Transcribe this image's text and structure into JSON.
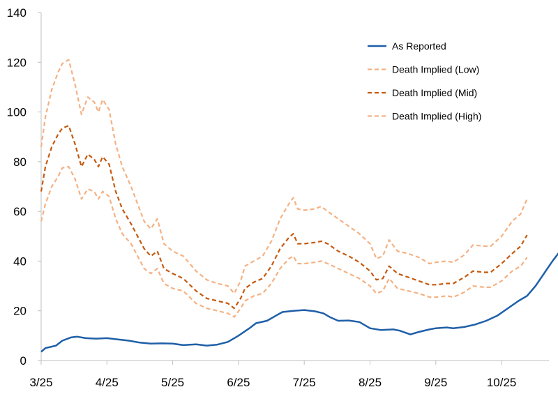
{
  "chart_data": {
    "type": "line",
    "title": "",
    "xlabel": "",
    "ylabel": "",
    "x_ticks": [
      "3/25",
      "4/25",
      "5/25",
      "6/25",
      "7/25",
      "8/25",
      "9/25",
      "10/25"
    ],
    "ylim": [
      0,
      140
    ],
    "y_ticks": [
      0,
      20,
      40,
      60,
      80,
      100,
      120,
      140
    ],
    "grid": false,
    "legend_position": "top-right",
    "series": [
      {
        "name": "As Reported",
        "color": "#1f5fa8",
        "style": "solid",
        "points": [
          [
            "3/25",
            3.5
          ],
          [
            "3/27",
            5
          ],
          [
            "4/1",
            6
          ],
          [
            "4/4",
            8
          ],
          [
            "4/8",
            9.3
          ],
          [
            "4/11",
            9.6
          ],
          [
            "4/15",
            9
          ],
          [
            "4/20",
            8.8
          ],
          [
            "4/25",
            9
          ],
          [
            "4/30",
            8.5
          ],
          [
            "5/5",
            8
          ],
          [
            "5/10",
            7.2
          ],
          [
            "5/15",
            6.8
          ],
          [
            "5/20",
            6.9
          ],
          [
            "5/25",
            6.8
          ],
          [
            "5/30",
            6.2
          ],
          [
            "6/5",
            6.5
          ],
          [
            "6/10",
            6
          ],
          [
            "6/15",
            6.4
          ],
          [
            "6/20",
            7.5
          ],
          [
            "6/25",
            10
          ],
          [
            "6/30",
            13
          ],
          [
            "7/3",
            15
          ],
          [
            "7/8",
            16
          ],
          [
            "7/12",
            18
          ],
          [
            "7/15",
            19.5
          ],
          [
            "7/20",
            20
          ],
          [
            "7/25",
            20.3
          ],
          [
            "7/30",
            19.8
          ],
          [
            "8/3",
            19
          ],
          [
            "8/6",
            17.5
          ],
          [
            "8/10",
            16
          ],
          [
            "8/15",
            16.1
          ],
          [
            "8/20",
            15.5
          ],
          [
            "8/25",
            13
          ],
          [
            "8/30",
            12.3
          ],
          [
            "9/5",
            12.5
          ],
          [
            "9/8",
            12
          ],
          [
            "9/13",
            10.5
          ],
          [
            "9/17",
            11.5
          ],
          [
            "9/22",
            12.5
          ],
          [
            "9/25",
            13
          ],
          [
            "9/30",
            13.3
          ],
          [
            "10/3",
            13
          ],
          [
            "10/8",
            13.5
          ],
          [
            "10/13",
            14.5
          ],
          [
            "10/18",
            16
          ],
          [
            "10/23",
            18
          ],
          [
            "10/28",
            21
          ],
          [
            "11/2",
            24
          ],
          [
            "11/6",
            26
          ],
          [
            "11/10",
            30
          ],
          [
            "11/14",
            35
          ],
          [
            "11/18",
            40
          ],
          [
            "11/22",
            44.5
          ]
        ]
      },
      {
        "name": "Death Implied (Low)",
        "color": "#f4b183",
        "style": "dashed",
        "points": [
          [
            "3/25",
            56
          ],
          [
            "3/27",
            63
          ],
          [
            "3/30",
            70
          ],
          [
            "4/2",
            74
          ],
          [
            "4/4",
            77.5
          ],
          [
            "4/7",
            78
          ],
          [
            "4/10",
            73
          ],
          [
            "4/13",
            65
          ],
          [
            "4/16",
            69
          ],
          [
            "4/19",
            68
          ],
          [
            "4/21",
            65
          ],
          [
            "4/23",
            68
          ],
          [
            "4/26",
            66
          ],
          [
            "4/29",
            57
          ],
          [
            "5/2",
            51
          ],
          [
            "5/6",
            47
          ],
          [
            "5/9",
            42
          ],
          [
            "5/12",
            37
          ],
          [
            "5/15",
            35
          ],
          [
            "5/18",
            37
          ],
          [
            "5/21",
            31
          ],
          [
            "5/25",
            29
          ],
          [
            "5/30",
            28
          ],
          [
            "6/5",
            23
          ],
          [
            "6/10",
            21
          ],
          [
            "6/15",
            20
          ],
          [
            "6/20",
            19
          ],
          [
            "6/23",
            17.5
          ],
          [
            "6/26",
            21
          ],
          [
            "6/28",
            24
          ],
          [
            "7/2",
            26
          ],
          [
            "7/6",
            27
          ],
          [
            "7/10",
            31
          ],
          [
            "7/14",
            37
          ],
          [
            "7/18",
            41
          ],
          [
            "7/20",
            42
          ],
          [
            "7/22",
            39
          ],
          [
            "7/25",
            39
          ],
          [
            "7/30",
            39.5
          ],
          [
            "8/2",
            40
          ],
          [
            "8/5",
            39
          ],
          [
            "8/10",
            37
          ],
          [
            "8/15",
            35
          ],
          [
            "8/20",
            33
          ],
          [
            "8/25",
            30
          ],
          [
            "8/28",
            27
          ],
          [
            "8/31",
            28
          ],
          [
            "9/3",
            33
          ],
          [
            "9/7",
            29
          ],
          [
            "9/12",
            28
          ],
          [
            "9/17",
            27
          ],
          [
            "9/22",
            25.5
          ],
          [
            "9/25",
            25.5
          ],
          [
            "9/30",
            26
          ],
          [
            "10/3",
            25.5
          ],
          [
            "10/8",
            27.5
          ],
          [
            "10/12",
            30
          ],
          [
            "10/17",
            29.5
          ],
          [
            "10/20",
            29.5
          ],
          [
            "10/25",
            32
          ],
          [
            "10/30",
            36
          ],
          [
            "11/3",
            38
          ],
          [
            "11/6",
            41.5
          ]
        ]
      },
      {
        "name": "Death Implied (Mid)",
        "color": "#c55a11",
        "style": "dashed",
        "points": [
          [
            "3/25",
            68
          ],
          [
            "3/27",
            78
          ],
          [
            "3/30",
            86
          ],
          [
            "4/2",
            91
          ],
          [
            "4/4",
            93.5
          ],
          [
            "4/7",
            94.5
          ],
          [
            "4/10",
            87
          ],
          [
            "4/13",
            78
          ],
          [
            "4/16",
            83
          ],
          [
            "4/19",
            81
          ],
          [
            "4/21",
            78
          ],
          [
            "4/23",
            82
          ],
          [
            "4/26",
            79
          ],
          [
            "4/29",
            68
          ],
          [
            "5/2",
            61
          ],
          [
            "5/6",
            55
          ],
          [
            "5/9",
            50
          ],
          [
            "5/12",
            45
          ],
          [
            "5/15",
            42
          ],
          [
            "5/18",
            44
          ],
          [
            "5/21",
            37
          ],
          [
            "5/25",
            35
          ],
          [
            "5/30",
            33
          ],
          [
            "6/5",
            28
          ],
          [
            "6/10",
            25
          ],
          [
            "6/15",
            24
          ],
          [
            "6/20",
            23
          ],
          [
            "6/23",
            21
          ],
          [
            "6/26",
            25
          ],
          [
            "6/28",
            29
          ],
          [
            "7/2",
            31.5
          ],
          [
            "7/6",
            33
          ],
          [
            "7/10",
            38
          ],
          [
            "7/14",
            45
          ],
          [
            "7/18",
            49.5
          ],
          [
            "7/20",
            51
          ],
          [
            "7/22",
            47
          ],
          [
            "7/25",
            47
          ],
          [
            "7/30",
            47.5
          ],
          [
            "8/2",
            48
          ],
          [
            "8/5",
            47
          ],
          [
            "8/10",
            44
          ],
          [
            "8/15",
            42
          ],
          [
            "8/20",
            39.5
          ],
          [
            "8/25",
            36
          ],
          [
            "8/28",
            32.5
          ],
          [
            "8/31",
            33
          ],
          [
            "9/3",
            38
          ],
          [
            "9/7",
            35
          ],
          [
            "9/12",
            33.5
          ],
          [
            "9/17",
            32
          ],
          [
            "9/22",
            30.5
          ],
          [
            "9/25",
            30.5
          ],
          [
            "9/30",
            31
          ],
          [
            "10/3",
            31
          ],
          [
            "10/8",
            33.5
          ],
          [
            "10/12",
            36
          ],
          [
            "10/17",
            35.5
          ],
          [
            "10/20",
            35.5
          ],
          [
            "10/25",
            39
          ],
          [
            "10/30",
            43
          ],
          [
            "11/3",
            46
          ],
          [
            "11/6",
            50.5
          ]
        ]
      },
      {
        "name": "Death Implied (High)",
        "color": "#f4b183",
        "style": "dashed",
        "points": [
          [
            "3/25",
            86
          ],
          [
            "3/27",
            98
          ],
          [
            "3/30",
            109
          ],
          [
            "4/2",
            116
          ],
          [
            "4/4",
            119.5
          ],
          [
            "4/7",
            121
          ],
          [
            "4/10",
            111
          ],
          [
            "4/13",
            99
          ],
          [
            "4/16",
            106
          ],
          [
            "4/19",
            104
          ],
          [
            "4/21",
            100
          ],
          [
            "4/23",
            105
          ],
          [
            "4/26",
            101
          ],
          [
            "4/29",
            87
          ],
          [
            "5/2",
            78
          ],
          [
            "5/6",
            70
          ],
          [
            "5/9",
            63
          ],
          [
            "5/12",
            56
          ],
          [
            "5/15",
            53
          ],
          [
            "5/18",
            57
          ],
          [
            "5/21",
            47
          ],
          [
            "5/25",
            44
          ],
          [
            "5/30",
            42
          ],
          [
            "6/5",
            36
          ],
          [
            "6/10",
            32.5
          ],
          [
            "6/15",
            31
          ],
          [
            "6/20",
            30
          ],
          [
            "6/23",
            27
          ],
          [
            "6/26",
            32
          ],
          [
            "6/28",
            38
          ],
          [
            "7/2",
            40
          ],
          [
            "7/6",
            42
          ],
          [
            "7/10",
            48
          ],
          [
            "7/14",
            57
          ],
          [
            "7/18",
            63
          ],
          [
            "7/20",
            65.5
          ],
          [
            "7/22",
            61
          ],
          [
            "7/25",
            60.5
          ],
          [
            "7/30",
            61
          ],
          [
            "8/2",
            62
          ],
          [
            "8/5",
            60
          ],
          [
            "8/10",
            57
          ],
          [
            "8/15",
            54
          ],
          [
            "8/20",
            51
          ],
          [
            "8/25",
            47
          ],
          [
            "8/28",
            41
          ],
          [
            "8/31",
            42
          ],
          [
            "9/3",
            48.5
          ],
          [
            "9/7",
            44
          ],
          [
            "9/12",
            43
          ],
          [
            "9/17",
            41.5
          ],
          [
            "9/22",
            39
          ],
          [
            "9/25",
            39.5
          ],
          [
            "9/30",
            40
          ],
          [
            "10/3",
            39.5
          ],
          [
            "10/8",
            42.5
          ],
          [
            "10/12",
            46.5
          ],
          [
            "10/17",
            46
          ],
          [
            "10/20",
            46
          ],
          [
            "10/25",
            50
          ],
          [
            "10/30",
            56
          ],
          [
            "11/3",
            59
          ],
          [
            "11/6",
            65
          ]
        ]
      }
    ]
  }
}
